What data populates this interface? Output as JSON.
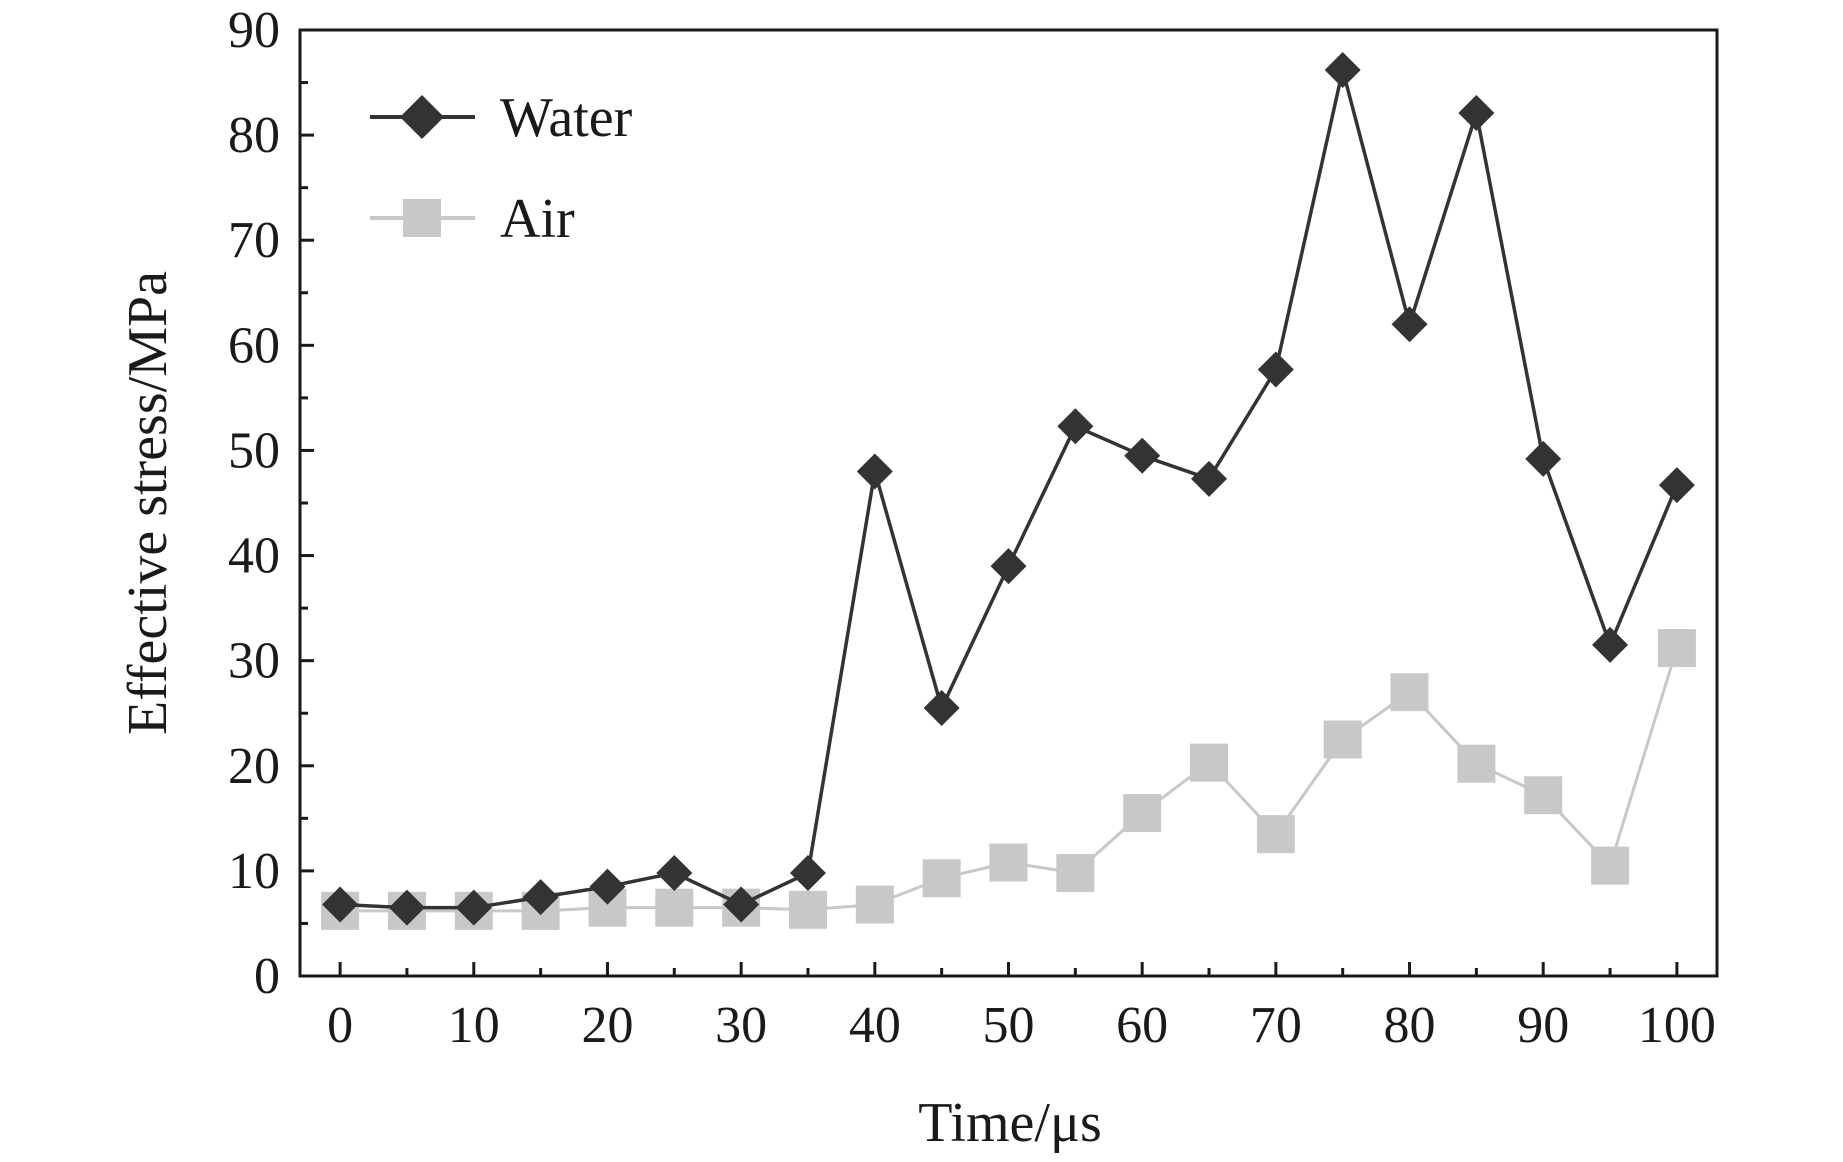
{
  "chart_data": {
    "type": "line",
    "title": "",
    "xlabel": "Time/μs",
    "ylabel": "Effective stress/MPa",
    "xlim": [
      -3,
      103
    ],
    "ylim": [
      0,
      90
    ],
    "xticks": [
      0,
      10,
      20,
      30,
      40,
      50,
      60,
      70,
      80,
      90,
      100
    ],
    "xtick_labels": [
      "0",
      "10",
      "20",
      "30",
      "40",
      "50",
      "60",
      "70",
      "80",
      "90",
      "100"
    ],
    "yticks": [
      0,
      10,
      20,
      30,
      40,
      50,
      60,
      70,
      80,
      90
    ],
    "ytick_labels": [
      "0",
      "10",
      "20",
      "30",
      "40",
      "50",
      "60",
      "70",
      "80",
      "90"
    ],
    "grid": false,
    "legend_position": "top-left",
    "x": [
      0,
      5,
      10,
      15,
      20,
      25,
      30,
      35,
      40,
      45,
      50,
      55,
      60,
      65,
      70,
      75,
      80,
      85,
      90,
      95,
      100
    ],
    "series": [
      {
        "name": "Water",
        "marker": "diamond",
        "color": "#333333",
        "values": [
          6.8,
          6.5,
          6.5,
          7.5,
          8.5,
          9.8,
          6.8,
          9.8,
          48.0,
          25.5,
          39.0,
          52.3,
          49.5,
          47.3,
          57.7,
          86.2,
          62.0,
          82.1,
          49.2,
          31.5,
          46.7
        ]
      },
      {
        "name": "Air",
        "marker": "square",
        "color": "#c8c8c8",
        "values": [
          6.2,
          6.2,
          6.2,
          6.2,
          6.5,
          6.5,
          6.5,
          6.3,
          6.8,
          9.3,
          10.8,
          9.8,
          15.5,
          20.3,
          13.5,
          22.5,
          27.0,
          20.2,
          17.2,
          10.5,
          31.2
        ]
      }
    ]
  }
}
